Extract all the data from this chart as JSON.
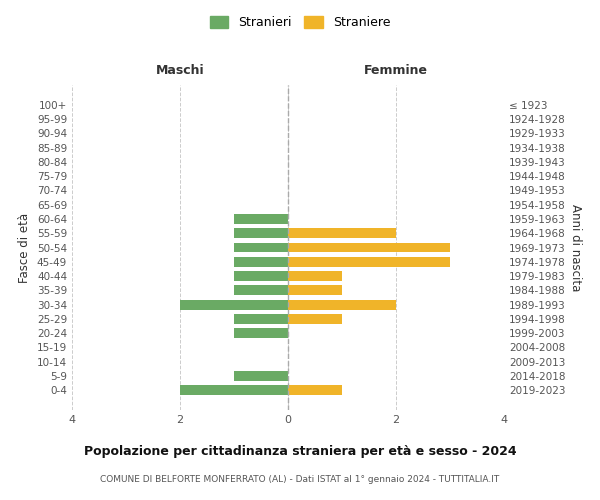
{
  "age_groups": [
    "100+",
    "95-99",
    "90-94",
    "85-89",
    "80-84",
    "75-79",
    "70-74",
    "65-69",
    "60-64",
    "55-59",
    "50-54",
    "45-49",
    "40-44",
    "35-39",
    "30-34",
    "25-29",
    "20-24",
    "15-19",
    "10-14",
    "5-9",
    "0-4"
  ],
  "birth_years": [
    "≤ 1923",
    "1924-1928",
    "1929-1933",
    "1934-1938",
    "1939-1943",
    "1944-1948",
    "1949-1953",
    "1954-1958",
    "1959-1963",
    "1964-1968",
    "1969-1973",
    "1974-1978",
    "1979-1983",
    "1984-1988",
    "1989-1993",
    "1994-1998",
    "1999-2003",
    "2004-2008",
    "2009-2013",
    "2014-2018",
    "2019-2023"
  ],
  "maschi": [
    0,
    0,
    0,
    0,
    0,
    0,
    0,
    0,
    1,
    1,
    1,
    1,
    1,
    1,
    2,
    1,
    1,
    0,
    0,
    1,
    2
  ],
  "femmine": [
    0,
    0,
    0,
    0,
    0,
    0,
    0,
    0,
    0,
    2,
    3,
    3,
    1,
    1,
    2,
    1,
    0,
    0,
    0,
    0,
    1
  ],
  "color_maschi": "#6aaa64",
  "color_femmine": "#f0b429",
  "label_maschi": "Stranieri",
  "label_femmine": "Straniere",
  "title": "Popolazione per cittadinanza straniera per età e sesso - 2024",
  "subtitle": "COMUNE DI BELFORTE MONFERRATO (AL) - Dati ISTAT al 1° gennaio 2024 - TUTTITALIA.IT",
  "header_maschi": "Maschi",
  "header_femmine": "Femmine",
  "ylabel_left": "Fasce di età",
  "ylabel_right": "Anni di nascita",
  "xlim": 4,
  "background_color": "#ffffff",
  "grid_color": "#cccccc"
}
